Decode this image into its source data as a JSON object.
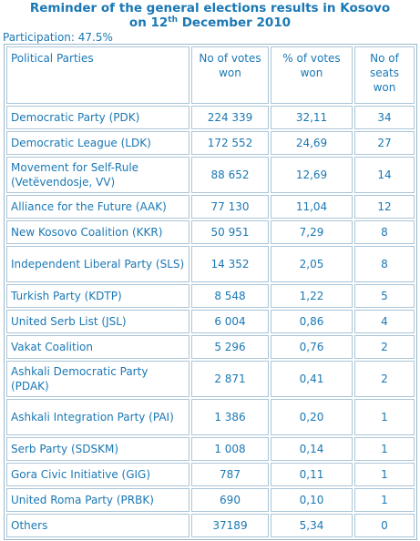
{
  "title_line1": "Reminder of the general elections results in Kosovo",
  "title_line2_pre": "on 12",
  "title_line2_sup": "th",
  "title_line2_post": " December 2010",
  "participation": "Participation:  47.5%",
  "headers": {
    "party": "Political  Parties",
    "votes": "No of votes won",
    "percent": "% of votes won",
    "seats": "No of seats won"
  },
  "rows": [
    {
      "party": "Democratic Party (PDK)",
      "votes": "224 339",
      "percent": "32,11",
      "seats": "34"
    },
    {
      "party": "Democratic League (LDK)",
      "votes": "172 552",
      "percent": "24,69",
      "seats": "27"
    },
    {
      "party": "Movement for Self-Rule (Vetëvendosje, VV)",
      "votes": "88 652",
      "percent": "12,69",
      "seats": "14"
    },
    {
      "party": "Alliance  for the Future (AAK)",
      "votes": "77 130",
      "percent": "11,04",
      "seats": "12"
    },
    {
      "party": "New Kosovo Coalition  (KKR)",
      "votes": "50 951",
      "percent": "7,29",
      "seats": "8"
    },
    {
      "party": "Independent  Liberal Party (SLS)",
      "votes": "14 352",
      "percent": "2,05",
      "seats": "8"
    },
    {
      "party": "Turkish Party (KDTP)",
      "votes": "8 548",
      "percent": "1,22",
      "seats": "5"
    },
    {
      "party": "United Serb List (JSL)",
      "votes": "6 004",
      "percent": "0,86",
      "seats": "4"
    },
    {
      "party": "Vakat Coalition",
      "votes": "5 296",
      "percent": "0,76",
      "seats": "2"
    },
    {
      "party": "Ashkali Democratic Party (PDAK)",
      "votes": "2 871",
      "percent": "0,41",
      "seats": "2"
    },
    {
      "party": "Ashkali Integration  Party (PAI)",
      "votes": "1 386",
      "percent": "0,20",
      "seats": "1"
    },
    {
      "party": "Serb Party (SDSKM)",
      "votes": "1 008",
      "percent": "0,14",
      "seats": "1"
    },
    {
      "party": "Gora Civic Initiative  (GIG)",
      "votes": "787",
      "percent": "0,11",
      "seats": "1"
    },
    {
      "party": "United Roma Party (PRBK)",
      "votes": "690",
      "percent": "0,10",
      "seats": "1"
    },
    {
      "party": "Others",
      "votes": "37189",
      "percent": "5,34",
      "seats": "0"
    }
  ]
}
